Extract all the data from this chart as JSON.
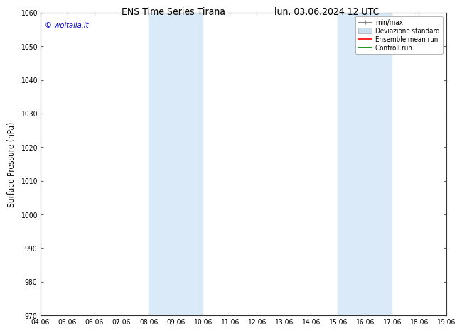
{
  "title_left": "ENS Time Series Tirana",
  "title_right": "lun. 03.06.2024 12 UTC",
  "ylabel": "Surface Pressure (hPa)",
  "ylim": [
    970,
    1060
  ],
  "yticks": [
    970,
    980,
    990,
    1000,
    1010,
    1020,
    1030,
    1040,
    1050,
    1060
  ],
  "x_labels": [
    "04.06",
    "05.06",
    "06.06",
    "07.06",
    "08.06",
    "09.06",
    "10.06",
    "11.06",
    "12.06",
    "13.06",
    "14.06",
    "15.06",
    "16.06",
    "17.06",
    "18.06",
    "19.06"
  ],
  "x_values": [
    0,
    1,
    2,
    3,
    4,
    5,
    6,
    7,
    8,
    9,
    10,
    11,
    12,
    13,
    14,
    15
  ],
  "shaded_regions": [
    {
      "xmin": 4,
      "xmax": 6,
      "color": "#daeaf8"
    },
    {
      "xmin": 11,
      "xmax": 13,
      "color": "#daeaf8"
    }
  ],
  "legend_entries": [
    {
      "label": "min/max",
      "color": "#aaaaaa",
      "style": "errorbar"
    },
    {
      "label": "Deviazione standard",
      "color": "#cce0f0",
      "style": "rect"
    },
    {
      "label": "Ensemble mean run",
      "color": "#ff0000",
      "style": "line"
    },
    {
      "label": "Controll run",
      "color": "#008000",
      "style": "line"
    }
  ],
  "watermark_text": "© woitalia.it",
  "watermark_color": "#0000cc",
  "background_color": "#ffffff",
  "grid_color": "#cccccc",
  "title_fontsize": 10,
  "tick_fontsize": 7.5,
  "ylabel_fontsize": 8.5,
  "legend_fontsize": 7,
  "watermark_fontsize": 8
}
